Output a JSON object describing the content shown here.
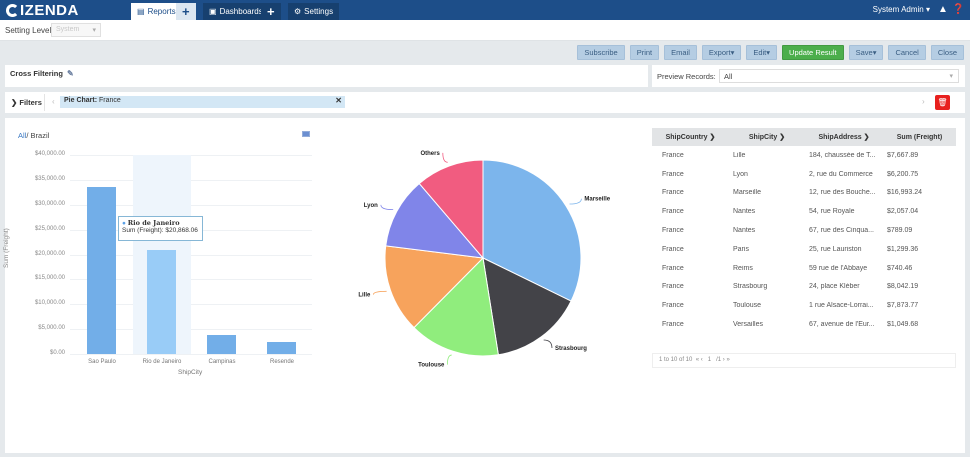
{
  "app": {
    "logo": "IZENDA",
    "nav_tabs": [
      {
        "label": "Reports",
        "icon": "reports-icon",
        "active": true
      },
      {
        "label": "Dashboards",
        "icon": "dashboard-icon",
        "active": false
      },
      {
        "label": "Settings",
        "icon": "gear-icon",
        "active": false
      }
    ],
    "user_menu": "System Admin",
    "icons": [
      "bell-icon",
      "help-icon"
    ]
  },
  "setting_level": {
    "label": "Setting Level:",
    "value": "System"
  },
  "toolbar": {
    "buttons": [
      "Subscribe",
      "Print",
      "Email",
      "Export",
      "Edit",
      "Update Result",
      "Save",
      "Cancel",
      "Close"
    ],
    "colors": {
      "default_bg": "#b5cde3",
      "primary_bg": "#4cae4c"
    }
  },
  "cross_filtering": {
    "label": "Cross Filtering"
  },
  "preview": {
    "label": "Preview Records:",
    "value": "All"
  },
  "filters": {
    "label": "Filters",
    "chip_field": "Pie Chart:",
    "chip_value": "France"
  },
  "bar_chart": {
    "breadcrumb_link": "All",
    "breadcrumb_current": "Brazil",
    "tooltip_title": "Rio de Janeiro",
    "tooltip_label": "Sum (Freight)",
    "tooltip_value": "$20,868.06"
  },
  "chart_data": [
    {
      "type": "bar",
      "title": "",
      "categories": [
        "Sao Paulo",
        "Rio de Janeiro",
        "Campinas",
        "Resende"
      ],
      "values": [
        33500,
        20868.06,
        3800,
        2400
      ],
      "values_note": "Rio de Janeiro is exact (from tooltip); other values are approximate readings off the y-axis",
      "xlabel": "ShipCity",
      "ylabel": "Sum (Freight)",
      "ylim": [
        0,
        40000
      ],
      "yticks": [
        "$0.00",
        "$5,000.00",
        "$10,000.00",
        "$15,000.00",
        "$20,000.00",
        "$25,000.00",
        "$30,000.00",
        "$35,000.00",
        "$40,000.00"
      ],
      "grid": true,
      "highlighted": "Rio de Janeiro",
      "color": "#72aee8"
    },
    {
      "type": "pie",
      "title": "",
      "categories": [
        "Marseille",
        "Strasbourg",
        "Toulouse",
        "Lille",
        "Lyon",
        "Others"
      ],
      "values": [
        16993.24,
        8042.19,
        7873.77,
        7667.89,
        6200.75,
        5935.63
      ],
      "values_note": "Slice values are not shown on the pie; they are inferred from the table rows, and Others is the computed sum of the remaining rows",
      "colors": [
        "#7cb5ec",
        "#434348",
        "#90ed7d",
        "#f7a35c",
        "#8085e9",
        "#f15c80"
      ]
    }
  ],
  "table": {
    "columns": [
      "ShipCountry",
      "ShipCity",
      "ShipAddress",
      "Sum (Freight)"
    ],
    "rows": [
      [
        "France",
        "Lille",
        "184, chaussée de T...",
        "$7,667.89"
      ],
      [
        "France",
        "Lyon",
        "2, rue du Commerce",
        "$6,200.75"
      ],
      [
        "France",
        "Marseille",
        "12, rue des Bouche...",
        "$16,993.24"
      ],
      [
        "France",
        "Nantes",
        "54, rue Royale",
        "$2,057.04"
      ],
      [
        "France",
        "Nantes",
        "67, rue des Cinqua...",
        "$789.09"
      ],
      [
        "France",
        "Paris",
        "25, rue Lauriston",
        "$1,299.36"
      ],
      [
        "France",
        "Reims",
        "59 rue de l'Abbaye",
        "$740.46"
      ],
      [
        "France",
        "Strasbourg",
        "24, place Kléber",
        "$8,042.19"
      ],
      [
        "France",
        "Toulouse",
        "1 rue Alsace-Lorrai...",
        "$7,873.77"
      ],
      [
        "France",
        "Versailles",
        "67, avenue de l'Eur...",
        "$1,049.68"
      ]
    ],
    "pager": {
      "summary": "1 to 10 of 10",
      "page": "1",
      "total_pages": "/1"
    }
  }
}
